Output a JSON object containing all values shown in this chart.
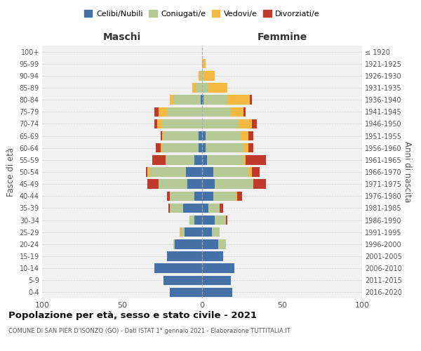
{
  "age_groups": [
    "100+",
    "95-99",
    "90-94",
    "85-89",
    "80-84",
    "75-79",
    "70-74",
    "65-69",
    "60-64",
    "55-59",
    "50-54",
    "45-49",
    "40-44",
    "35-39",
    "30-34",
    "25-29",
    "20-24",
    "15-19",
    "10-14",
    "5-9",
    "0-4"
  ],
  "birth_years": [
    "≤ 1920",
    "1921-1925",
    "1926-1930",
    "1931-1935",
    "1936-1940",
    "1941-1945",
    "1946-1950",
    "1951-1955",
    "1956-1960",
    "1961-1965",
    "1966-1970",
    "1971-1975",
    "1976-1980",
    "1981-1985",
    "1986-1990",
    "1991-1995",
    "1996-2000",
    "2001-2005",
    "2006-2010",
    "2011-2015",
    "2016-2020"
  ],
  "maschi": {
    "celibi": [
      0,
      0,
      0,
      0,
      1,
      0,
      0,
      2,
      2,
      5,
      10,
      9,
      5,
      12,
      5,
      11,
      17,
      22,
      30,
      24,
      20
    ],
    "coniugati": [
      0,
      0,
      1,
      4,
      17,
      22,
      25,
      22,
      23,
      18,
      23,
      18,
      15,
      8,
      3,
      2,
      1,
      0,
      0,
      0,
      0
    ],
    "vedovi": [
      0,
      0,
      1,
      2,
      2,
      5,
      3,
      1,
      1,
      0,
      1,
      0,
      0,
      0,
      0,
      1,
      0,
      0,
      0,
      0,
      0
    ],
    "divorziati": [
      0,
      0,
      0,
      0,
      0,
      3,
      2,
      1,
      3,
      8,
      1,
      7,
      2,
      1,
      0,
      0,
      0,
      0,
      0,
      0,
      0
    ]
  },
  "femmine": {
    "nubili": [
      0,
      0,
      0,
      0,
      1,
      0,
      0,
      2,
      2,
      3,
      7,
      8,
      7,
      4,
      8,
      6,
      10,
      13,
      20,
      18,
      19
    ],
    "coniugate": [
      0,
      0,
      1,
      4,
      15,
      18,
      23,
      22,
      24,
      23,
      22,
      24,
      14,
      7,
      7,
      5,
      5,
      0,
      0,
      0,
      0
    ],
    "vedove": [
      0,
      2,
      7,
      12,
      14,
      8,
      8,
      5,
      3,
      1,
      2,
      0,
      1,
      0,
      0,
      0,
      0,
      0,
      0,
      0,
      0
    ],
    "divorziate": [
      0,
      0,
      0,
      0,
      1,
      1,
      3,
      3,
      3,
      13,
      5,
      8,
      3,
      2,
      1,
      0,
      0,
      0,
      0,
      0,
      0
    ]
  },
  "colors": {
    "celibi": "#4472a8",
    "coniugati": "#b5c994",
    "vedovi": "#f5b942",
    "divorziati": "#c0392b"
  },
  "title": "Popolazione per età, sesso e stato civile - 2021",
  "subtitle": "COMUNE DI SAN PIER D'ISONZO (GO) - Dati ISTAT 1° gennaio 2021 - Elaborazione TUTTITALIA.IT",
  "xlabel_left": "Maschi",
  "xlabel_right": "Femmine",
  "ylabel_left": "Fasce di età",
  "ylabel_right": "Anni di nascita",
  "xlim": 100,
  "legend_labels": [
    "Celibi/Nubili",
    "Coniugati/e",
    "Vedovi/e",
    "Divorziati/e"
  ],
  "bg_color": "#f0f0f0",
  "grid_color": "#cccccc"
}
